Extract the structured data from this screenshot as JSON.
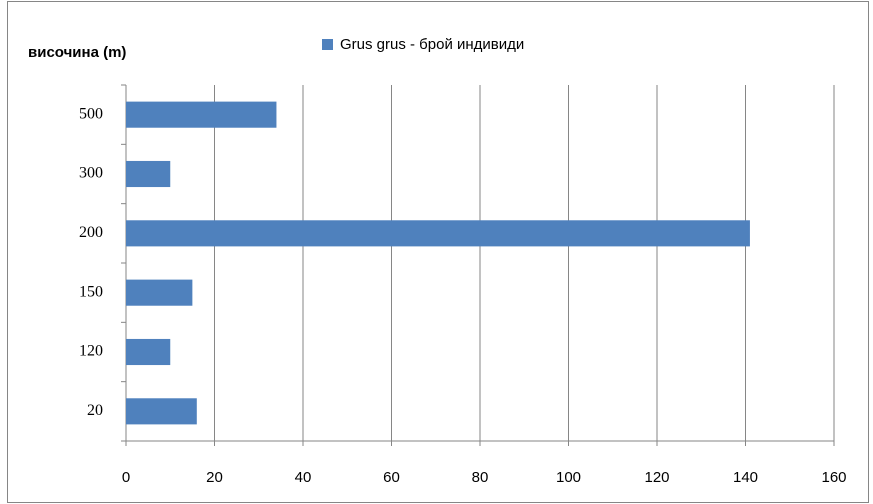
{
  "chart_data": {
    "type": "bar",
    "orientation": "horizontal",
    "y_axis_label": "височина (m)",
    "categories": [
      "20",
      "120",
      "150",
      "200",
      "300",
      "500"
    ],
    "series": [
      {
        "name": "Grus grus - брой индивиди",
        "color": "#4f81bd",
        "values": [
          16,
          10,
          15,
          141,
          10,
          34
        ]
      }
    ],
    "xlim": [
      0,
      160
    ],
    "xticks": [
      0,
      20,
      40,
      60,
      80,
      100,
      120,
      140,
      160
    ],
    "grid": true,
    "legend": "top"
  }
}
